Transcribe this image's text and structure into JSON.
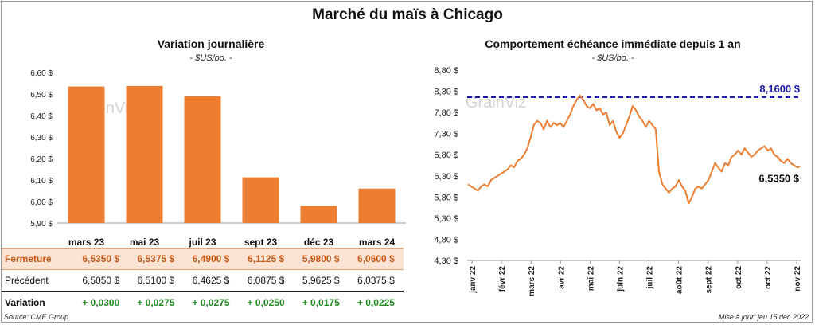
{
  "title": "Marché du maïs à Chicago",
  "left": {
    "subtitle": "Variation  journalière",
    "unit": "- $US/bo. -",
    "watermark": "GrainViz",
    "chart_data": {
      "type": "bar",
      "categories": [
        "mars 23",
        "mai 23",
        "juil 23",
        "sept 23",
        "déc 23",
        "mars 24"
      ],
      "values": [
        6.535,
        6.5375,
        6.49,
        6.1125,
        5.98,
        6.06
      ],
      "ylim": [
        5.9,
        6.6
      ],
      "yticks": [
        "5,90 $",
        "6,00 $",
        "6,10 $",
        "6,20 $",
        "6,30 $",
        "6,40 $",
        "6,50 $",
        "6,60 $"
      ],
      "color": "#ed7d31",
      "grid": false
    },
    "table": {
      "rows": [
        {
          "label": "Fermeture",
          "values": [
            "6,5350  $",
            "6,5375  $",
            "6,4900  $",
            "6,1125  $",
            "5,9800  $",
            "6,0600  $"
          ]
        },
        {
          "label": "Précédent",
          "values": [
            "6,5050  $",
            "6,5100  $",
            "6,4625  $",
            "6,0875  $",
            "5,9625  $",
            "6,0375  $"
          ]
        },
        {
          "label": "Variation",
          "values": [
            "+ 0,0300",
            "+ 0,0275",
            "+ 0,0275",
            "+ 0,0250",
            "+ 0,0175",
            "+ 0,0225"
          ]
        }
      ]
    }
  },
  "right": {
    "subtitle": "Comportement  échéance immédiate depuis 1 an",
    "unit": "- $US/bo. -",
    "watermark": "GrainViz",
    "chart_data": {
      "type": "line",
      "ylim": [
        4.3,
        8.8
      ],
      "yticks": [
        "4,30 $",
        "4,80 $",
        "5,30 $",
        "5,80 $",
        "6,30 $",
        "6,80 $",
        "7,30 $",
        "7,80 $",
        "8,30 $",
        "8,80 $"
      ],
      "xticks": [
        "janv 22",
        "févr 22",
        "mars 22",
        "avr 22",
        "mai 22",
        "juin 22",
        "juil 22",
        "août 22",
        "sept 22",
        "oct 22",
        "oct 22",
        "nov 22"
      ],
      "reference_line": {
        "value": 8.16,
        "label": "8,1600 $",
        "color": "#1a1aa6"
      },
      "last_label": "6,5350 $",
      "color": "#ed7d31",
      "values": [
        6.1,
        6.05,
        6.0,
        5.95,
        6.05,
        6.1,
        6.05,
        6.2,
        6.25,
        6.3,
        6.35,
        6.4,
        6.45,
        6.55,
        6.5,
        6.65,
        6.7,
        6.8,
        6.95,
        7.2,
        7.5,
        7.6,
        7.55,
        7.4,
        7.6,
        7.45,
        7.55,
        7.5,
        7.55,
        7.45,
        7.6,
        7.75,
        7.95,
        8.1,
        8.2,
        8.1,
        7.95,
        7.9,
        8.0,
        7.85,
        7.9,
        7.75,
        7.8,
        7.5,
        7.6,
        7.35,
        7.2,
        7.3,
        7.5,
        7.7,
        7.95,
        7.85,
        7.7,
        7.6,
        7.45,
        7.6,
        7.5,
        7.4,
        6.4,
        6.1,
        6.0,
        5.9,
        6.0,
        6.05,
        6.2,
        6.05,
        5.95,
        5.65,
        5.8,
        6.0,
        6.05,
        6.0,
        6.1,
        6.2,
        6.4,
        6.6,
        6.5,
        6.4,
        6.6,
        6.55,
        6.75,
        6.8,
        6.9,
        6.8,
        6.95,
        6.85,
        6.75,
        6.8,
        6.9,
        6.95,
        7.0,
        6.9,
        6.95,
        6.8,
        6.75,
        6.65,
        6.6,
        6.7,
        6.6,
        6.55,
        6.5,
        6.53
      ]
    }
  },
  "footer": {
    "source": "Source: CME Group",
    "updated": "Mise à jour: jeu 15 déc 2022"
  }
}
